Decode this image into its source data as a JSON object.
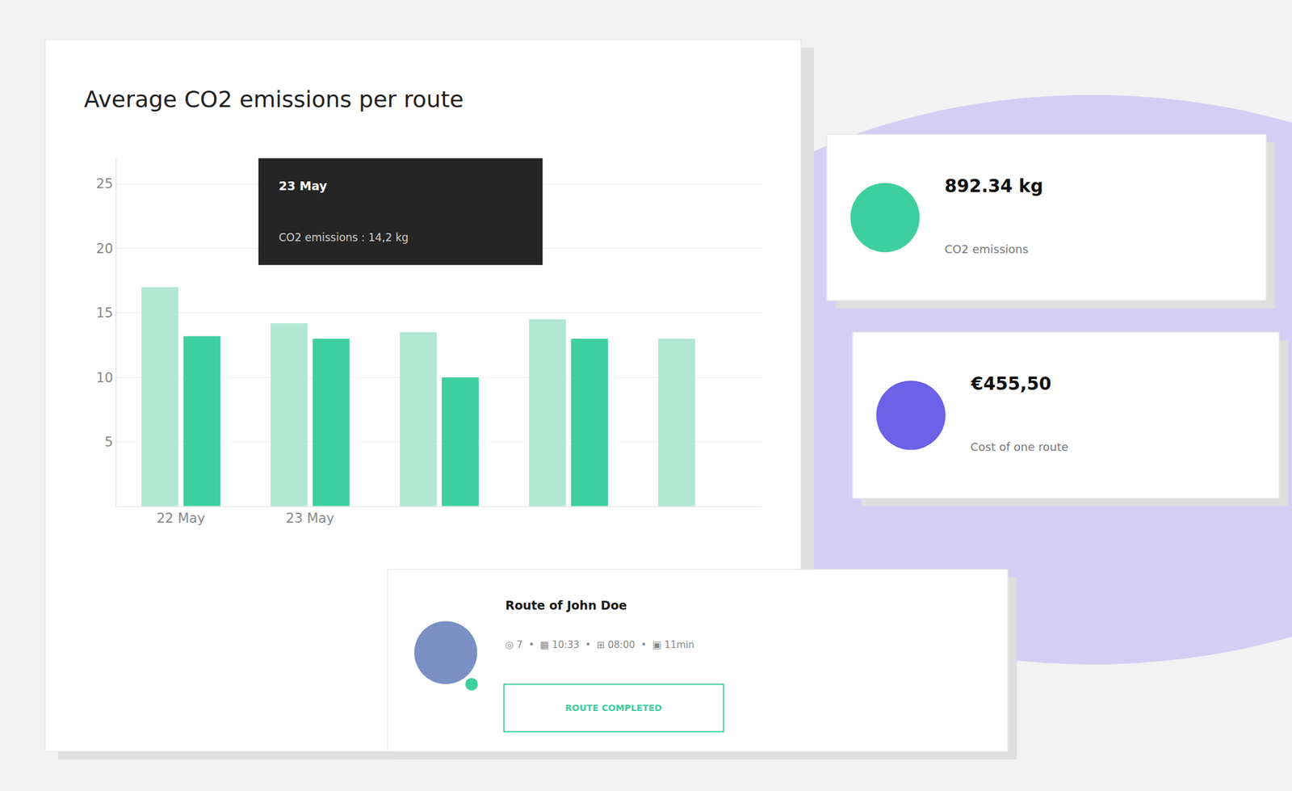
{
  "chart_data": {
    "type": "bar",
    "title": "Average CO2 emissions per route",
    "categories": [
      "22 May",
      "23 May",
      null,
      null,
      null
    ],
    "series": [
      {
        "color": "#b2e8d4",
        "values": [
          17.0,
          14.2,
          13.5,
          14.5,
          13.0
        ]
      },
      {
        "color": "#3ecfa0",
        "values": [
          13.2,
          13.0,
          10.0,
          13.0,
          null
        ]
      }
    ],
    "ylim": [
      0,
      27
    ],
    "yticks": [
      5,
      10,
      15,
      20,
      25
    ],
    "grid": true,
    "annotations": [
      "23 May",
      "CO2 emissions : 14,2 kg",
      "892.34 kg",
      "CO2 emissions",
      "€455,50",
      "Cost of one route",
      "Route of John Doe",
      "◎ 7  •  ▦ 10:33  •  ⊞ 08:00  •  ▣ 11min",
      "ROUTE COMPLETED"
    ]
  }
}
